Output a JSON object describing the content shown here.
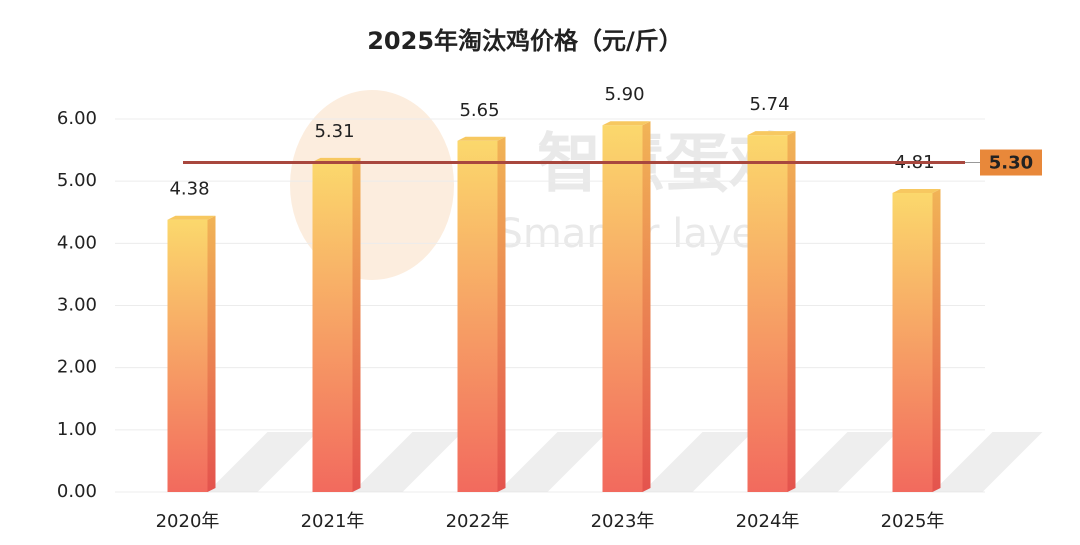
{
  "chart_data": {
    "type": "bar",
    "title": "2025年淘汰鸡价格（元/斤）",
    "categories": [
      "2020年",
      "2021年",
      "2022年",
      "2023年",
      "2024年",
      "2025年"
    ],
    "values": [
      4.38,
      5.31,
      5.65,
      5.9,
      5.74,
      4.81
    ],
    "value_labels": [
      "4.38",
      "5.31",
      "5.65",
      "5.90",
      "5.74",
      "4.81"
    ],
    "color": "#f26a5e",
    "ylim": [
      0,
      6
    ],
    "yticks": [
      {
        "value": 0,
        "label": "0.00"
      },
      {
        "value": 1,
        "label": "1.00"
      },
      {
        "value": 2,
        "label": "2.00"
      },
      {
        "value": 3,
        "label": "3.00"
      },
      {
        "value": 4,
        "label": "4.00"
      },
      {
        "value": 5,
        "label": "5.00"
      },
      {
        "value": 6,
        "label": "6.00"
      }
    ],
    "grid": true,
    "reference_line": {
      "value": 5.3,
      "label": "5.30",
      "color": "#a8473e"
    },
    "watermark": {
      "title": "智慧蛋鸡",
      "subtitle": "Smarter layer"
    }
  }
}
